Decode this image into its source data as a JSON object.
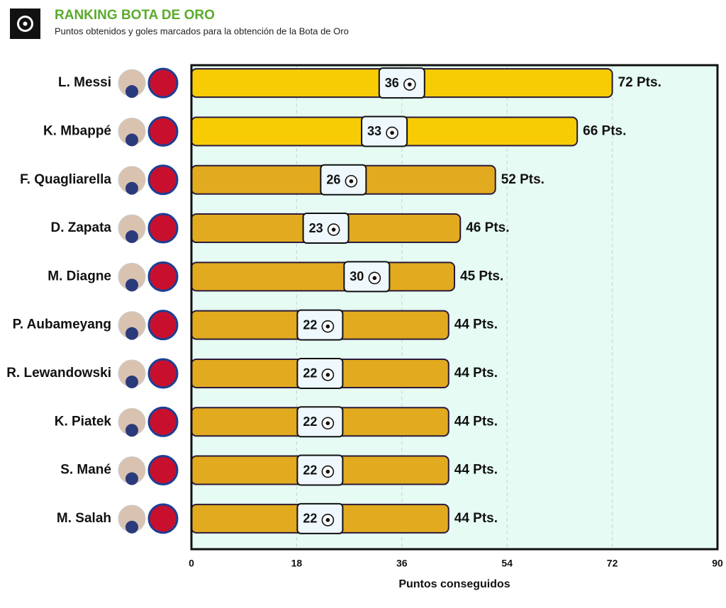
{
  "chart_data": {
    "type": "bar",
    "orientation": "horizontal",
    "title": "RANKING BOTA DE ORO",
    "subtitle": "Puntos obtenidos y goles marcados para la obtención de la Bota de Oro",
    "categories": [
      "L. Messi",
      "K. Mbappé",
      "F. Quagliarella",
      "D. Zapata",
      "M. Diagne",
      "P. Aubameyang",
      "R. Lewandowski",
      "K. Piatek",
      "S. Mané",
      "M. Salah"
    ],
    "values": [
      72,
      66,
      52,
      46,
      45,
      44,
      44,
      44,
      44,
      44
    ],
    "value_labels": [
      "72 Pts.",
      "66 Pts.",
      "52 Pts.",
      "46 Pts.",
      "45 Pts.",
      "44 Pts.",
      "44 Pts.",
      "44 Pts.",
      "44 Pts.",
      "44 Pts."
    ],
    "goals": [
      36,
      33,
      26,
      23,
      30,
      22,
      22,
      22,
      22,
      22
    ],
    "colors": [
      "#f7cc05",
      "#f7cc05",
      "#e2aa1f",
      "#e2aa1f",
      "#e2aa1f",
      "#e2aa1f",
      "#e2aa1f",
      "#e2aa1f",
      "#e2aa1f",
      "#e2aa1f"
    ],
    "xlabel": "Puntos conseguidos",
    "xlim": [
      0,
      90
    ],
    "xticks": [
      0,
      18,
      36,
      54,
      72,
      90
    ],
    "grid": true
  }
}
